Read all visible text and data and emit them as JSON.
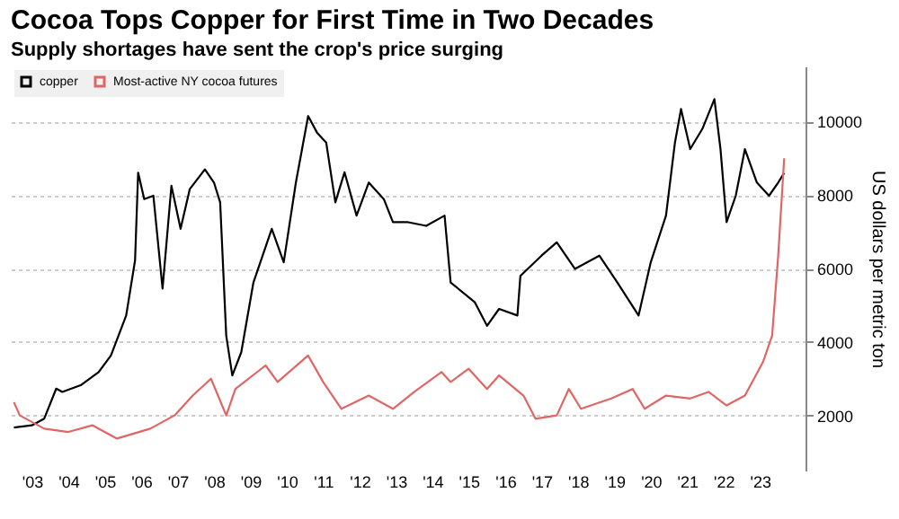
{
  "chart_data": {
    "type": "line",
    "title": "Cocoa Tops Copper for First Time in Two Decades",
    "subtitle": "Supply shortages have sent the crop's price surging",
    "ylabel": "US dollars per metric ton",
    "xlim": [
      "2002-12",
      "2024-10"
    ],
    "ylim": [
      500,
      11500
    ],
    "xticks": [
      {
        "value": "2003-07",
        "label": "'03"
      },
      {
        "value": "2004-07",
        "label": "'04"
      },
      {
        "value": "2005-07",
        "label": "'05"
      },
      {
        "value": "2006-07",
        "label": "'06"
      },
      {
        "value": "2007-07",
        "label": "'07"
      },
      {
        "value": "2008-07",
        "label": "'08"
      },
      {
        "value": "2009-07",
        "label": "'09"
      },
      {
        "value": "2010-07",
        "label": "'10"
      },
      {
        "value": "2011-07",
        "label": "'11"
      },
      {
        "value": "2012-07",
        "label": "'12"
      },
      {
        "value": "2013-07",
        "label": "'13"
      },
      {
        "value": "2014-07",
        "label": "'14"
      },
      {
        "value": "2015-07",
        "label": "'15"
      },
      {
        "value": "2016-07",
        "label": "'16"
      },
      {
        "value": "2017-07",
        "label": "'17"
      },
      {
        "value": "2018-07",
        "label": "'18"
      },
      {
        "value": "2019-07",
        "label": "'19"
      },
      {
        "value": "2020-07",
        "label": "'20"
      },
      {
        "value": "2021-07",
        "label": "'21"
      },
      {
        "value": "2022-07",
        "label": "'22"
      },
      {
        "value": "2023-07",
        "label": "'23"
      }
    ],
    "yticks": [
      2000,
      4000,
      6000,
      8000,
      10000
    ],
    "grid": "y",
    "legend": "top left",
    "marker": "none",
    "line_style": "solid",
    "series": [
      {
        "name": "copper",
        "color": "#000000",
        "x": [
          "2003-01",
          "2003-07",
          "2003-11",
          "2004-03",
          "2004-05",
          "2004-11",
          "2005-05",
          "2005-09",
          "2006-02",
          "2006-05",
          "2006-06",
          "2006-08",
          "2006-11",
          "2007-02",
          "2007-05",
          "2007-08",
          "2007-11",
          "2008-04",
          "2008-07",
          "2008-09",
          "2008-11",
          "2009-01",
          "2009-04",
          "2009-08",
          "2010-02",
          "2010-06",
          "2010-10",
          "2011-02",
          "2011-05",
          "2011-08",
          "2011-11",
          "2012-02",
          "2012-06",
          "2012-10",
          "2013-03",
          "2013-06",
          "2013-11",
          "2014-05",
          "2014-11",
          "2015-01",
          "2015-09",
          "2016-01",
          "2016-05",
          "2016-11",
          "2016-12",
          "2017-07",
          "2017-12",
          "2018-06",
          "2019-02",
          "2019-08",
          "2020-03",
          "2020-07",
          "2020-12",
          "2021-03",
          "2021-05",
          "2021-08",
          "2021-12",
          "2022-04",
          "2022-06",
          "2022-08",
          "2022-11",
          "2023-02",
          "2023-06",
          "2023-10",
          "2024-01",
          "2024-03"
        ],
        "values": [
          1670,
          1730,
          1910,
          2730,
          2640,
          2820,
          3180,
          3630,
          4720,
          6220,
          8610,
          7890,
          7980,
          5450,
          8250,
          7080,
          8160,
          8700,
          8340,
          7800,
          4170,
          3090,
          3720,
          5620,
          7080,
          6170,
          8340,
          10150,
          9700,
          9430,
          7800,
          8620,
          7440,
          8340,
          7890,
          7260,
          7260,
          7160,
          7440,
          5620,
          5080,
          4440,
          4900,
          4720,
          5800,
          6350,
          6710,
          5990,
          6350,
          5620,
          4720,
          6170,
          7440,
          9430,
          10340,
          9250,
          9800,
          10610,
          9250,
          7260,
          7980,
          9250,
          8340,
          7980,
          8340,
          8600
        ]
      },
      {
        "name": "Most-active NY cocoa futures",
        "color": "#e06666",
        "x": [
          "2003-01",
          "2003-03",
          "2003-11",
          "2004-07",
          "2005-03",
          "2005-11",
          "2006-10",
          "2007-06",
          "2007-12",
          "2008-06",
          "2008-11",
          "2009-02",
          "2009-12",
          "2010-04",
          "2011-02",
          "2011-07",
          "2012-01",
          "2012-10",
          "2013-06",
          "2014-01",
          "2014-10",
          "2015-01",
          "2015-07",
          "2016-01",
          "2016-05",
          "2017-01",
          "2017-05",
          "2017-12",
          "2018-04",
          "2018-08",
          "2019-06",
          "2020-01",
          "2020-05",
          "2020-12",
          "2021-08",
          "2022-02",
          "2022-08",
          "2023-02",
          "2023-08",
          "2023-11",
          "2024-01",
          "2024-03"
        ],
        "values": [
          2360,
          2000,
          1640,
          1550,
          1730,
          1370,
          1640,
          2000,
          2540,
          3000,
          2000,
          2720,
          3360,
          2910,
          3630,
          2910,
          2180,
          2540,
          2180,
          2640,
          3180,
          2910,
          3270,
          2720,
          3090,
          2540,
          1910,
          2000,
          2720,
          2180,
          2460,
          2720,
          2180,
          2540,
          2460,
          2640,
          2270,
          2540,
          3450,
          4170,
          6350,
          9000
        ]
      }
    ]
  }
}
